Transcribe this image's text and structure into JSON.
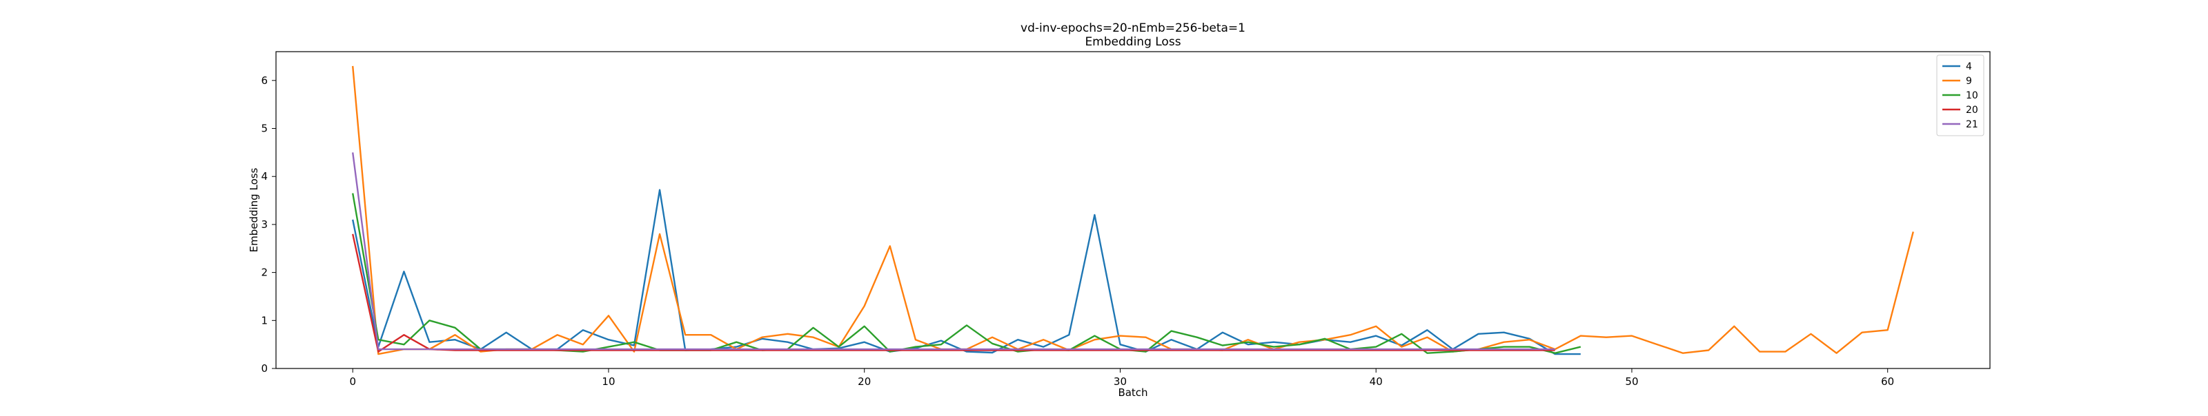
{
  "chart_data": {
    "type": "line",
    "title": "vd-inv-epochs=20-nEmb=256-beta=1",
    "subtitle": "Embedding Loss",
    "xlabel": "Batch",
    "ylabel": "Embedding Loss",
    "xlim": [
      -3,
      64
    ],
    "ylim": [
      0,
      6.6
    ],
    "xticks": [
      0,
      10,
      20,
      30,
      40,
      50,
      60
    ],
    "yticks": [
      0,
      1,
      2,
      3,
      4,
      5,
      6
    ],
    "grid": false,
    "legend_position": "top-right",
    "series": [
      {
        "name": "4",
        "color": "#1f77b4",
        "x": [
          0,
          1,
          2,
          3,
          4,
          5,
          6,
          7,
          8,
          9,
          10,
          11,
          12,
          13,
          14,
          15,
          16,
          17,
          18,
          19,
          20,
          21,
          22,
          23,
          24,
          25,
          26,
          27,
          28,
          29,
          30,
          31,
          32,
          33,
          34,
          35,
          36,
          37,
          38,
          39,
          40,
          41,
          42,
          43,
          44,
          45,
          46,
          47,
          48
        ],
        "y": [
          3.1,
          0.45,
          2.02,
          0.55,
          0.6,
          0.4,
          0.75,
          0.4,
          0.4,
          0.8,
          0.6,
          0.48,
          3.72,
          0.38,
          0.4,
          0.45,
          0.62,
          0.55,
          0.4,
          0.42,
          0.55,
          0.35,
          0.42,
          0.58,
          0.35,
          0.33,
          0.6,
          0.45,
          0.7,
          3.2,
          0.5,
          0.35,
          0.6,
          0.4,
          0.75,
          0.5,
          0.55,
          0.5,
          0.6,
          0.55,
          0.68,
          0.48,
          0.8,
          0.4,
          0.72,
          0.75,
          0.62,
          0.3,
          0.3
        ]
      },
      {
        "name": "9",
        "color": "#ff7f0e",
        "x": [
          0,
          1,
          2,
          3,
          4,
          5,
          6,
          7,
          8,
          9,
          10,
          11,
          12,
          13,
          14,
          15,
          16,
          17,
          18,
          19,
          20,
          21,
          22,
          23,
          24,
          25,
          26,
          27,
          28,
          29,
          30,
          31,
          32,
          33,
          34,
          35,
          36,
          37,
          38,
          39,
          40,
          41,
          42,
          43,
          44,
          45,
          46,
          47,
          48,
          49,
          50,
          51,
          52,
          53,
          54,
          55,
          56,
          57,
          58,
          59,
          60,
          61
        ],
        "y": [
          6.3,
          0.3,
          0.4,
          0.4,
          0.7,
          0.35,
          0.4,
          0.4,
          0.7,
          0.5,
          1.1,
          0.35,
          2.8,
          0.7,
          0.7,
          0.4,
          0.65,
          0.72,
          0.65,
          0.45,
          1.3,
          2.55,
          0.6,
          0.4,
          0.4,
          0.65,
          0.4,
          0.6,
          0.38,
          0.6,
          0.68,
          0.65,
          0.4,
          0.4,
          0.38,
          0.6,
          0.4,
          0.55,
          0.6,
          0.7,
          0.88,
          0.45,
          0.65,
          0.35,
          0.4,
          0.55,
          0.6,
          0.4,
          0.68,
          0.65,
          0.68,
          0.5,
          0.32,
          0.38,
          0.88,
          0.35,
          0.35,
          0.72,
          0.32,
          0.75,
          0.8,
          2.85
        ]
      },
      {
        "name": "10",
        "color": "#2ca02c",
        "x": [
          0,
          1,
          2,
          3,
          4,
          5,
          6,
          7,
          8,
          9,
          10,
          11,
          12,
          13,
          14,
          15,
          16,
          17,
          18,
          19,
          20,
          21,
          22,
          23,
          24,
          25,
          26,
          27,
          28,
          29,
          30,
          31,
          32,
          33,
          34,
          35,
          36,
          37,
          38,
          39,
          40,
          41,
          42,
          43,
          44,
          45,
          46,
          47,
          48
        ],
        "y": [
          3.65,
          0.6,
          0.5,
          1.0,
          0.85,
          0.4,
          0.4,
          0.4,
          0.38,
          0.35,
          0.45,
          0.55,
          0.38,
          0.38,
          0.38,
          0.55,
          0.38,
          0.4,
          0.85,
          0.45,
          0.88,
          0.35,
          0.45,
          0.5,
          0.9,
          0.52,
          0.35,
          0.4,
          0.38,
          0.68,
          0.4,
          0.35,
          0.78,
          0.65,
          0.48,
          0.55,
          0.45,
          0.5,
          0.62,
          0.4,
          0.45,
          0.72,
          0.32,
          0.35,
          0.4,
          0.45,
          0.45,
          0.32,
          0.45
        ]
      },
      {
        "name": "20",
        "color": "#d62728",
        "x": [
          0,
          1,
          2,
          3,
          4,
          5,
          6,
          7,
          8,
          9,
          10,
          11,
          12,
          13,
          14,
          15,
          16,
          17,
          18,
          19,
          20,
          21,
          22,
          23,
          24,
          25,
          26,
          27,
          28,
          29,
          30,
          31,
          32,
          33,
          34,
          35,
          36,
          37,
          38,
          39,
          40,
          41,
          42,
          43,
          44,
          45,
          46,
          47
        ],
        "y": [
          2.8,
          0.35,
          0.7,
          0.4,
          0.38,
          0.38,
          0.38,
          0.38,
          0.38,
          0.38,
          0.38,
          0.38,
          0.38,
          0.38,
          0.38,
          0.38,
          0.38,
          0.38,
          0.38,
          0.38,
          0.38,
          0.38,
          0.38,
          0.38,
          0.38,
          0.38,
          0.38,
          0.38,
          0.38,
          0.38,
          0.38,
          0.38,
          0.38,
          0.38,
          0.38,
          0.38,
          0.38,
          0.38,
          0.38,
          0.38,
          0.38,
          0.38,
          0.38,
          0.38,
          0.38,
          0.38,
          0.38,
          0.38
        ]
      },
      {
        "name": "21",
        "color": "#9467bd",
        "x": [
          0,
          1,
          2,
          3,
          4,
          5,
          6,
          7,
          8,
          9,
          10,
          11,
          12,
          13,
          14,
          15,
          16,
          17,
          18,
          19,
          20,
          21,
          22,
          23,
          24,
          25,
          26,
          27,
          28,
          29,
          30,
          31,
          32,
          33,
          34,
          35,
          36,
          37,
          38,
          39,
          40,
          41,
          42,
          43,
          44,
          45,
          46,
          47
        ],
        "y": [
          4.5,
          0.4,
          0.4,
          0.4,
          0.4,
          0.4,
          0.4,
          0.4,
          0.4,
          0.4,
          0.4,
          0.4,
          0.4,
          0.4,
          0.4,
          0.4,
          0.4,
          0.4,
          0.4,
          0.4,
          0.4,
          0.4,
          0.4,
          0.4,
          0.4,
          0.4,
          0.4,
          0.4,
          0.4,
          0.4,
          0.4,
          0.4,
          0.4,
          0.4,
          0.4,
          0.4,
          0.4,
          0.4,
          0.4,
          0.4,
          0.4,
          0.4,
          0.4,
          0.4,
          0.4,
          0.4,
          0.4,
          0.4
        ]
      }
    ]
  }
}
